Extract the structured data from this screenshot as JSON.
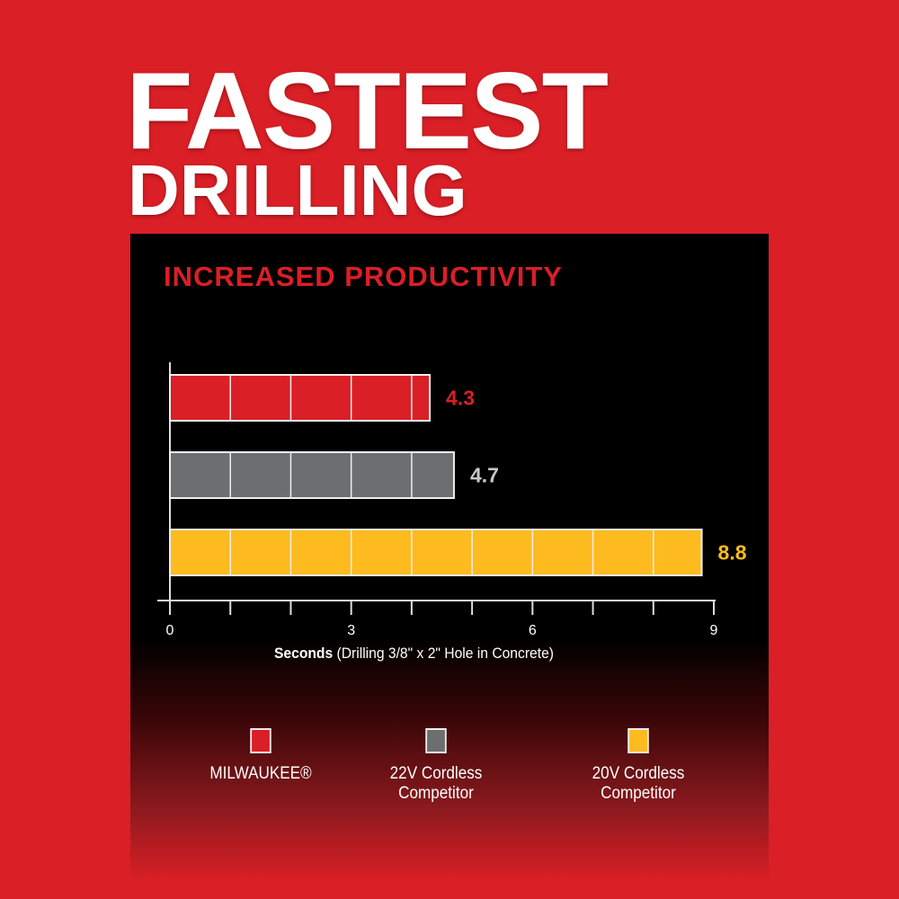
{
  "headline": {
    "line1": "FASTEST",
    "line2": "DRILLING"
  },
  "subtitle": "INCREASED PRODUCTIVITY",
  "chart_data": {
    "type": "bar",
    "orientation": "horizontal",
    "categories": [
      "MILWAUKEE®",
      "22V Cordless Competitor",
      "20V Cordless Competitor"
    ],
    "values": [
      4.3,
      4.7,
      8.8
    ],
    "data_labels": [
      "4.3",
      "4.7",
      "8.8"
    ],
    "colors": [
      "#da1f26",
      "#6d6e70",
      "#fdbb1f"
    ],
    "label_colors": [
      "#da1f26",
      "#c8c8c8",
      "#fdbb1f"
    ],
    "xlim": [
      0,
      9
    ],
    "xticks": [
      0,
      3,
      6,
      9
    ],
    "minor_ticks_every": 1,
    "xlabel_bold": "Seconds",
    "xlabel_rest": " (Drilling 3/8\" x 2\" Hole in Concrete)",
    "legend": "bottom"
  },
  "legend": [
    {
      "label": "MILWAUKEE®",
      "lines": [
        "MILWAUKEE®",
        ""
      ],
      "color": "#da1f26"
    },
    {
      "label": "22V Cordless Competitor",
      "lines": [
        "22V Cordless",
        "Competitor"
      ],
      "color": "#6d6e70"
    },
    {
      "label": "20V Cordless Competitor",
      "lines": [
        "20V Cordless",
        "Competitor"
      ],
      "color": "#fdbb1f"
    }
  ]
}
